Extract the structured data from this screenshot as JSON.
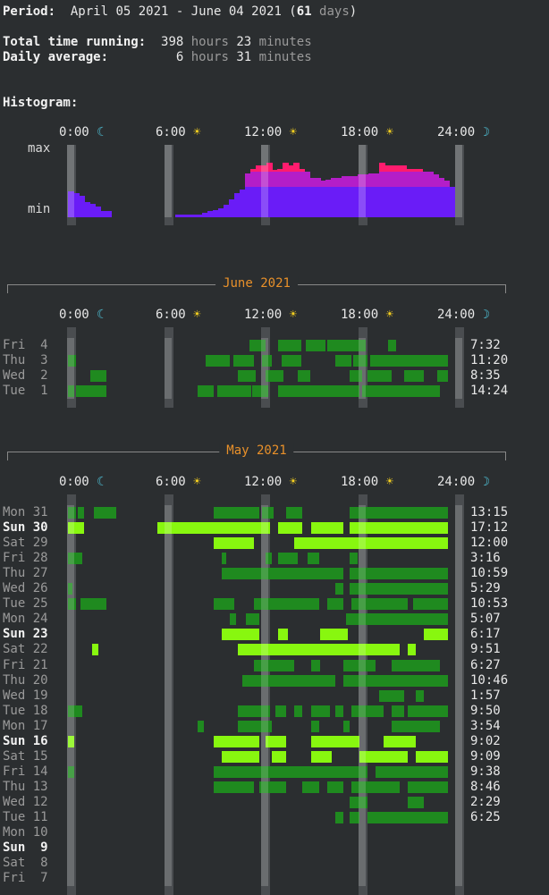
{
  "summary": {
    "period_label": "Period:",
    "period_value": "April 05 2021 - June 04 2021 (",
    "period_days_num": "61",
    "period_days_unit": " days",
    "period_close": ")",
    "total_label": "Total time running:",
    "total_hours": "398",
    "total_minutes": "23",
    "daily_label": "Daily average:",
    "daily_hours": "6",
    "daily_minutes": "31",
    "unit_hours": "hours",
    "unit_minutes": "minutes"
  },
  "histogram": {
    "label": "Histogram:",
    "max_label": "max",
    "min_label": "min",
    "levels": [
      0.85,
      0.8,
      0.7,
      0.5,
      0.45,
      0.35,
      0.2,
      0.2,
      0,
      0,
      0,
      0,
      0,
      0,
      0,
      0,
      0,
      0,
      0,
      0,
      0.1,
      0.1,
      0.1,
      0.1,
      0.1,
      0.15,
      0.2,
      0.25,
      0.3,
      0.4,
      0.6,
      0.8,
      0.9,
      1.45,
      1.6,
      1.7,
      1.7,
      1.8,
      1.55,
      1.6,
      1.8,
      1.7,
      1.8,
      1.6,
      1.5,
      1.3,
      1.3,
      1.2,
      1.25,
      1.3,
      1.3,
      1.35,
      1.35,
      1.35,
      1.4,
      1.4,
      1.45,
      1.45,
      1.8,
      1.7,
      1.7,
      1.7,
      1.7,
      1.6,
      1.6,
      1.6,
      1.5,
      1.5,
      1.4,
      1.3,
      1.2,
      1.0
    ],
    "colors": {
      "low": "#6a1cf7",
      "mid": "#b41ec8",
      "high": "#ff1c6e"
    }
  },
  "axis": {
    "ticks": [
      {
        "label": "0:00",
        "icon": "☾",
        "icon_name": "moon-icon"
      },
      {
        "label": "6:00",
        "icon": "☀",
        "icon_name": "sun-icon"
      },
      {
        "label": "12:00",
        "icon": "☀",
        "icon_name": "sun-icon"
      },
      {
        "label": "18:00",
        "icon": "☀",
        "icon_name": "sun-icon"
      },
      {
        "label": "24:00",
        "icon": "☽",
        "icon_name": "moon-icon"
      }
    ]
  },
  "months": [
    {
      "title": "June 2021",
      "days": [
        {
          "weekday": "Fri",
          "day": "4",
          "total": "7:32",
          "bold": false,
          "style": "dark",
          "segments": [
            [
              11.2,
              12.2
            ],
            [
              13.0,
              14.4
            ],
            [
              14.7,
              15.9
            ],
            [
              16.0,
              18.4
            ],
            [
              19.8,
              20.3
            ]
          ]
        },
        {
          "weekday": "Thu",
          "day": "3",
          "total": "11:20",
          "bold": false,
          "style": "dark",
          "segments": [
            [
              0,
              0.5
            ],
            [
              8.5,
              10.0
            ],
            [
              10.2,
              11.5
            ],
            [
              12.0,
              12.6
            ],
            [
              13.2,
              14.4
            ],
            [
              16.5,
              17.5
            ],
            [
              17.6,
              18.5
            ],
            [
              18.7,
              23.5
            ]
          ]
        },
        {
          "weekday": "Wed",
          "day": "2",
          "total": "8:35",
          "bold": false,
          "style": "dark",
          "segments": [
            [
              1.4,
              2.4
            ],
            [
              10.5,
              11.6
            ],
            [
              12.2,
              13.3
            ],
            [
              14.2,
              15.0
            ],
            [
              17.4,
              18.2
            ],
            [
              18.5,
              20.0
            ],
            [
              20.8,
              22.0
            ],
            [
              22.8,
              23.5
            ]
          ]
        },
        {
          "weekday": "Tue",
          "day": "1",
          "total": "14:24",
          "bold": false,
          "style": "dark",
          "segments": [
            [
              0,
              0.4
            ],
            [
              0.5,
              2.4
            ],
            [
              8.0,
              9.0
            ],
            [
              9.2,
              11.3
            ],
            [
              11.4,
              12.4
            ],
            [
              13.0,
              18.0
            ],
            [
              18.2,
              23.0
            ]
          ]
        }
      ]
    },
    {
      "title": "May 2021",
      "days": [
        {
          "weekday": "Mon",
          "day": "31",
          "total": "13:15",
          "bold": false,
          "style": "dark",
          "segments": [
            [
              0,
              0.5
            ],
            [
              0.6,
              1.0
            ],
            [
              1.6,
              3.0
            ],
            [
              9.0,
              11.8
            ],
            [
              12.0,
              12.7
            ],
            [
              13.5,
              14.5
            ],
            [
              17.4,
              23.5
            ]
          ]
        },
        {
          "weekday": "Sun",
          "day": "30",
          "total": "17:12",
          "bold": true,
          "style": "bright",
          "segments": [
            [
              0,
              1.0
            ],
            [
              5.5,
              12.5
            ],
            [
              13.0,
              14.5
            ],
            [
              15.0,
              17.0
            ],
            [
              17.4,
              23.5
            ]
          ]
        },
        {
          "weekday": "Sat",
          "day": "29",
          "total": "12:00",
          "bold": false,
          "style": "bright",
          "segments": [
            [
              9.0,
              11.5
            ],
            [
              14.0,
              23.5
            ]
          ]
        },
        {
          "weekday": "Fri",
          "day": "28",
          "total": "3:16",
          "bold": false,
          "style": "dark",
          "segments": [
            [
              0,
              0.9
            ],
            [
              9.5,
              9.8
            ],
            [
              12.2,
              12.6
            ],
            [
              13.0,
              14.2
            ],
            [
              14.8,
              15.5
            ],
            [
              17.4,
              17.9
            ]
          ]
        },
        {
          "weekday": "Thu",
          "day": "27",
          "total": "10:59",
          "bold": false,
          "style": "dark",
          "segments": [
            [
              9.5,
              17.0
            ],
            [
              17.4,
              23.5
            ]
          ]
        },
        {
          "weekday": "Wed",
          "day": "26",
          "total": "5:29",
          "bold": false,
          "style": "dark",
          "segments": [
            [
              0,
              0.3
            ],
            [
              16.5,
              17.0
            ],
            [
              17.4,
              23.5
            ]
          ]
        },
        {
          "weekday": "Tue",
          "day": "25",
          "total": "10:53",
          "bold": false,
          "style": "dark",
          "segments": [
            [
              0,
              0.5
            ],
            [
              0.8,
              2.4
            ],
            [
              9.0,
              10.3
            ],
            [
              11.5,
              15.5
            ],
            [
              16.0,
              17.0
            ],
            [
              17.5,
              21.0
            ],
            [
              21.3,
              23.5
            ]
          ]
        },
        {
          "weekday": "Mon",
          "day": "24",
          "total": "5:07",
          "bold": false,
          "style": "dark",
          "segments": [
            [
              10.0,
              10.4
            ],
            [
              11.0,
              11.8
            ],
            [
              17.2,
              23.5
            ]
          ]
        },
        {
          "weekday": "Sun",
          "day": "23",
          "total": "6:17",
          "bold": true,
          "style": "bright",
          "segments": [
            [
              9.5,
              11.8
            ],
            [
              13.0,
              13.6
            ],
            [
              15.6,
              17.3
            ],
            [
              22.0,
              23.5
            ]
          ]
        },
        {
          "weekday": "Sat",
          "day": "22",
          "total": "9:51",
          "bold": false,
          "style": "bright",
          "segments": [
            [
              1.5,
              1.9
            ],
            [
              10.5,
              20.5
            ],
            [
              21.0,
              21.5
            ]
          ]
        },
        {
          "weekday": "Fri",
          "day": "21",
          "total": "6:27",
          "bold": false,
          "style": "dark",
          "segments": [
            [
              11.5,
              14.0
            ],
            [
              15.0,
              15.6
            ],
            [
              17.0,
              19.0
            ],
            [
              20.0,
              23.0
            ]
          ]
        },
        {
          "weekday": "Thu",
          "day": "20",
          "total": "10:46",
          "bold": false,
          "style": "dark",
          "segments": [
            [
              10.8,
              16.5
            ],
            [
              17.0,
              23.5
            ]
          ]
        },
        {
          "weekday": "Wed",
          "day": "19",
          "total": "1:57",
          "bold": false,
          "style": "dark",
          "segments": [
            [
              19.2,
              20.8
            ],
            [
              21.5,
              22.0
            ]
          ]
        },
        {
          "weekday": "Tue",
          "day": "18",
          "total": "9:50",
          "bold": false,
          "style": "dark",
          "segments": [
            [
              0,
              0.9
            ],
            [
              10.5,
              12.5
            ],
            [
              12.8,
              13.5
            ],
            [
              14.0,
              14.5
            ],
            [
              15.0,
              16.2
            ],
            [
              16.5,
              17.0
            ],
            [
              17.5,
              19.5
            ],
            [
              20.0,
              20.8
            ],
            [
              21.0,
              23.5
            ]
          ]
        },
        {
          "weekday": "Mon",
          "day": "17",
          "total": "3:54",
          "bold": false,
          "style": "dark",
          "segments": [
            [
              8.0,
              8.4
            ],
            [
              10.5,
              12.6
            ],
            [
              15.0,
              15.5
            ],
            [
              17.0,
              17.4
            ],
            [
              20.0,
              23.0
            ]
          ]
        },
        {
          "weekday": "Sun",
          "day": "16",
          "total": "9:02",
          "bold": true,
          "style": "bright",
          "segments": [
            [
              0,
              0.4
            ],
            [
              9.0,
              11.8
            ],
            [
              12.2,
              13.5
            ],
            [
              15.0,
              18.0
            ],
            [
              19.5,
              21.5
            ]
          ]
        },
        {
          "weekday": "Sat",
          "day": "15",
          "total": "9:09",
          "bold": false,
          "style": "bright",
          "segments": [
            [
              9.5,
              11.8
            ],
            [
              12.6,
              13.5
            ],
            [
              15.0,
              16.3
            ],
            [
              18.0,
              21.0
            ],
            [
              21.5,
              23.5
            ]
          ]
        },
        {
          "weekday": "Fri",
          "day": "14",
          "total": "9:38",
          "bold": false,
          "style": "dark",
          "segments": [
            [
              0,
              0.4
            ],
            [
              9.0,
              18.5
            ],
            [
              19.0,
              23.5
            ]
          ]
        },
        {
          "weekday": "Thu",
          "day": "13",
          "total": "8:46",
          "bold": false,
          "style": "dark",
          "segments": [
            [
              9.0,
              11.5
            ],
            [
              11.8,
              13.5
            ],
            [
              14.5,
              15.5
            ],
            [
              16.0,
              17.0
            ],
            [
              17.5,
              20.5
            ],
            [
              21.0,
              23.5
            ]
          ]
        },
        {
          "weekday": "Wed",
          "day": "12",
          "total": "2:29",
          "bold": false,
          "style": "dark",
          "segments": [
            [
              17.4,
              18.5
            ],
            [
              21.0,
              22.0
            ]
          ]
        },
        {
          "weekday": "Tue",
          "day": "11",
          "total": "6:25",
          "bold": false,
          "style": "dark",
          "segments": [
            [
              16.5,
              17.0
            ],
            [
              17.4,
              18.0
            ],
            [
              18.5,
              23.5
            ]
          ]
        },
        {
          "weekday": "Mon",
          "day": "10",
          "total": "",
          "bold": false,
          "style": "dark",
          "segments": []
        },
        {
          "weekday": "Sun",
          "day": "9",
          "total": "",
          "bold": true,
          "style": "dark",
          "segments": []
        },
        {
          "weekday": "Sat",
          "day": "8",
          "total": "",
          "bold": false,
          "style": "dark",
          "segments": []
        },
        {
          "weekday": "Fri",
          "day": "7",
          "total": "",
          "bold": false,
          "style": "dark",
          "segments": []
        }
      ]
    }
  ],
  "colors": {
    "dark": "#1f8a1f",
    "bright": "#88f70f",
    "guide": "#4a4d50"
  }
}
